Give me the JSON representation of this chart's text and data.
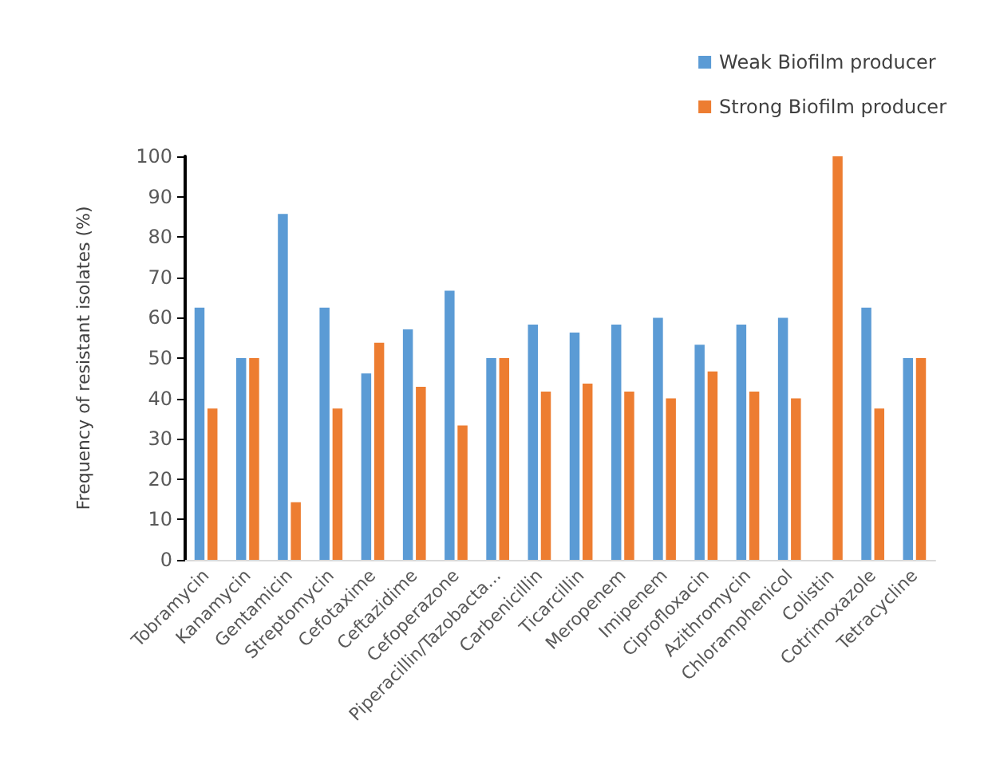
{
  "chart_data": {
    "type": "bar",
    "ylabel": "Frequency of resistant isolates (%)",
    "categories": [
      "Tobramycin",
      "Kanamycin",
      "Gentamicin",
      "Streptomycin",
      "Cefotaxime",
      "Ceftazidime",
      "Cefoperazone",
      "Piperacillin/Tazobacta...",
      "Carbenicillin",
      "Ticarcillin",
      "Meropenem",
      "Imipenem",
      "Ciprofloxacin",
      "Azithromycin",
      "Chloramphenicol",
      "Colistin",
      "Cotrimoxazole",
      "Tetracycline"
    ],
    "series": [
      {
        "name": "Weak Biofilm producer",
        "color": "#5b9bd5",
        "values": [
          62.5,
          50,
          85.7,
          62.5,
          46.2,
          57.1,
          66.7,
          50,
          58.3,
          56.3,
          58.3,
          60,
          53.3,
          58.3,
          60,
          null,
          62.5,
          50
        ]
      },
      {
        "name": "Strong Biofilm producer",
        "color": "#ed7d31",
        "values": [
          37.5,
          50,
          14.3,
          37.5,
          53.8,
          42.9,
          33.3,
          50,
          41.7,
          43.7,
          41.7,
          40,
          46.7,
          41.7,
          40,
          100,
          37.5,
          50
        ]
      }
    ],
    "ylim": [
      0,
      100
    ],
    "yticks": [
      0,
      10,
      20,
      30,
      40,
      50,
      60,
      70,
      80,
      90,
      100
    ],
    "grid": false,
    "legend": "top right"
  }
}
